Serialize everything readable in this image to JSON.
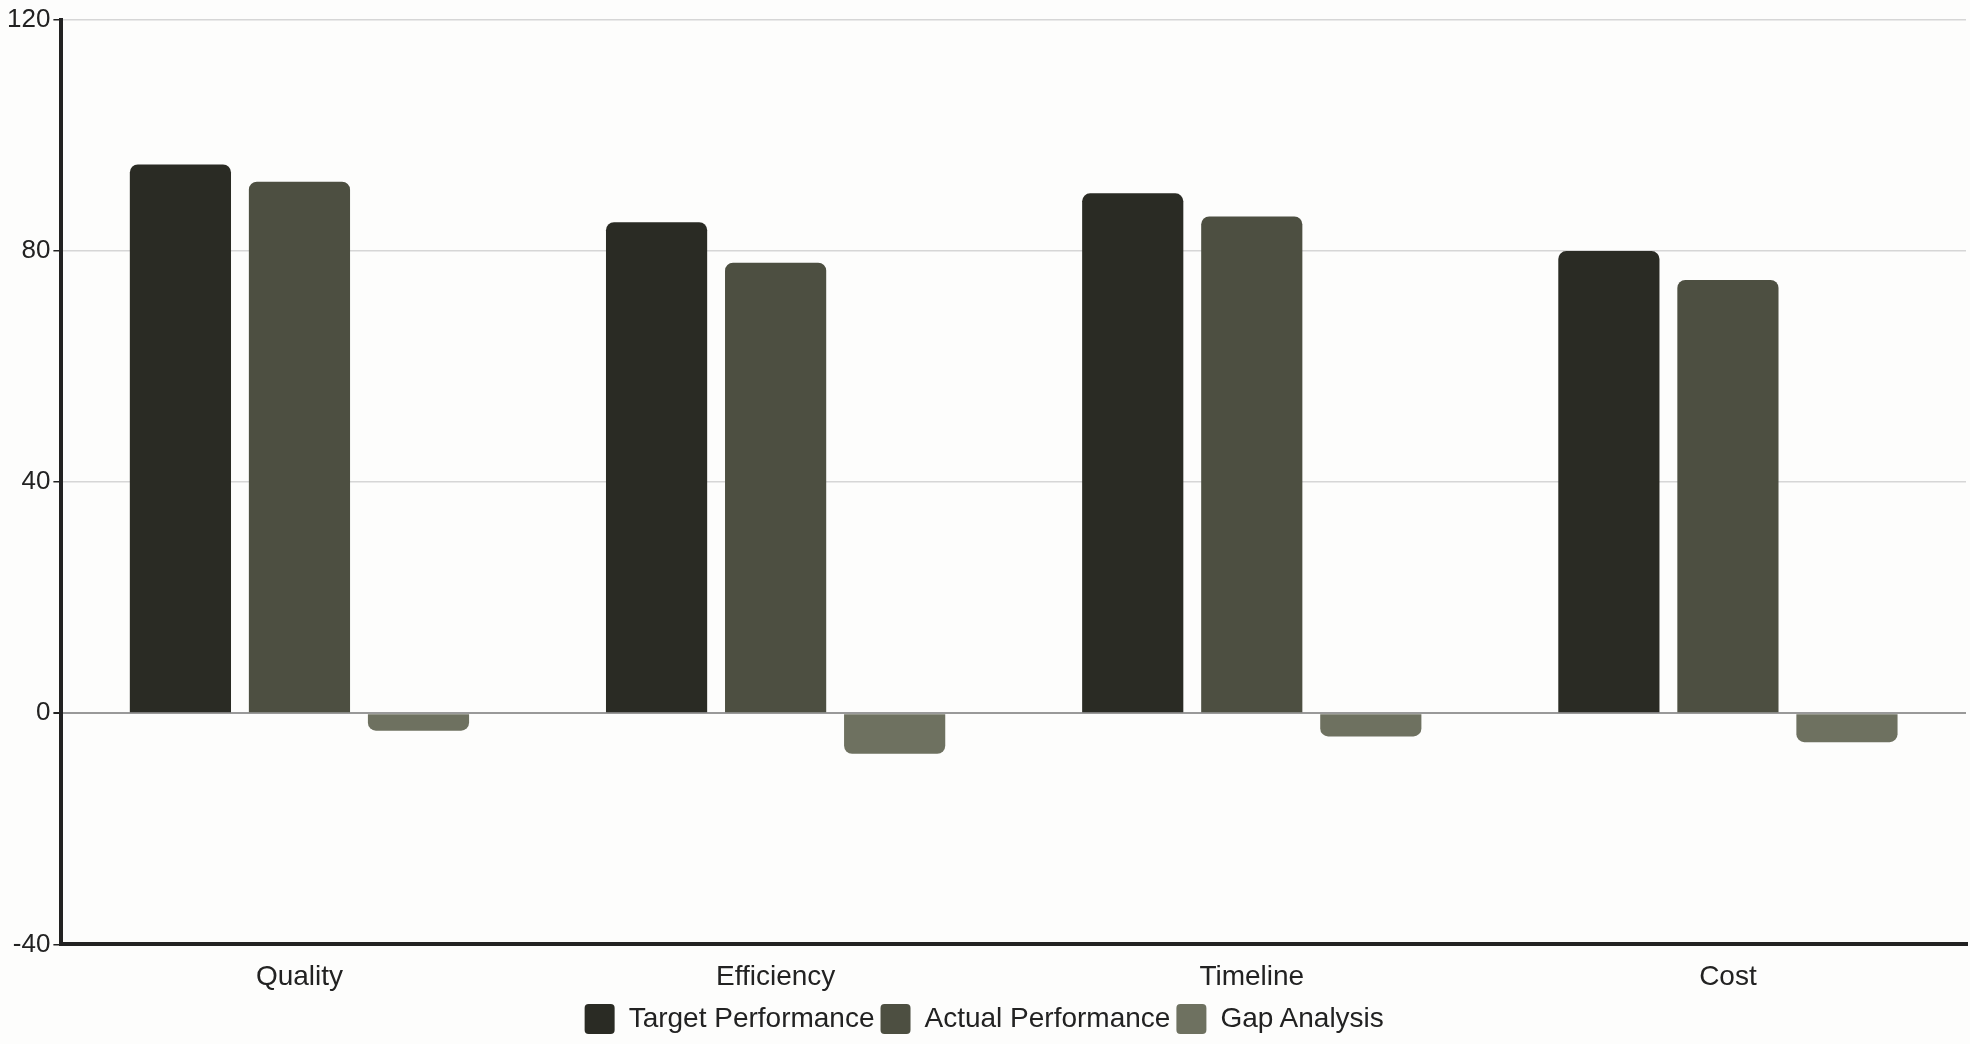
{
  "chart_data": {
    "type": "bar",
    "categories": [
      "Quality",
      "Efficiency",
      "Timeline",
      "Cost"
    ],
    "series": [
      {
        "name": "Target Performance",
        "color": "#2a2b24",
        "values": [
          95,
          85,
          90,
          80
        ]
      },
      {
        "name": "Actual Performance",
        "color": "#4d4f41",
        "values": [
          92,
          78,
          86,
          75
        ]
      },
      {
        "name": "Gap Analysis",
        "color": "#6e7160",
        "values": [
          -3,
          -7,
          -4,
          -5
        ]
      }
    ],
    "ylim": [
      -40,
      120
    ],
    "yticks": [
      -40,
      0,
      40,
      80,
      120
    ],
    "grid": "y",
    "legend": "bottom"
  }
}
